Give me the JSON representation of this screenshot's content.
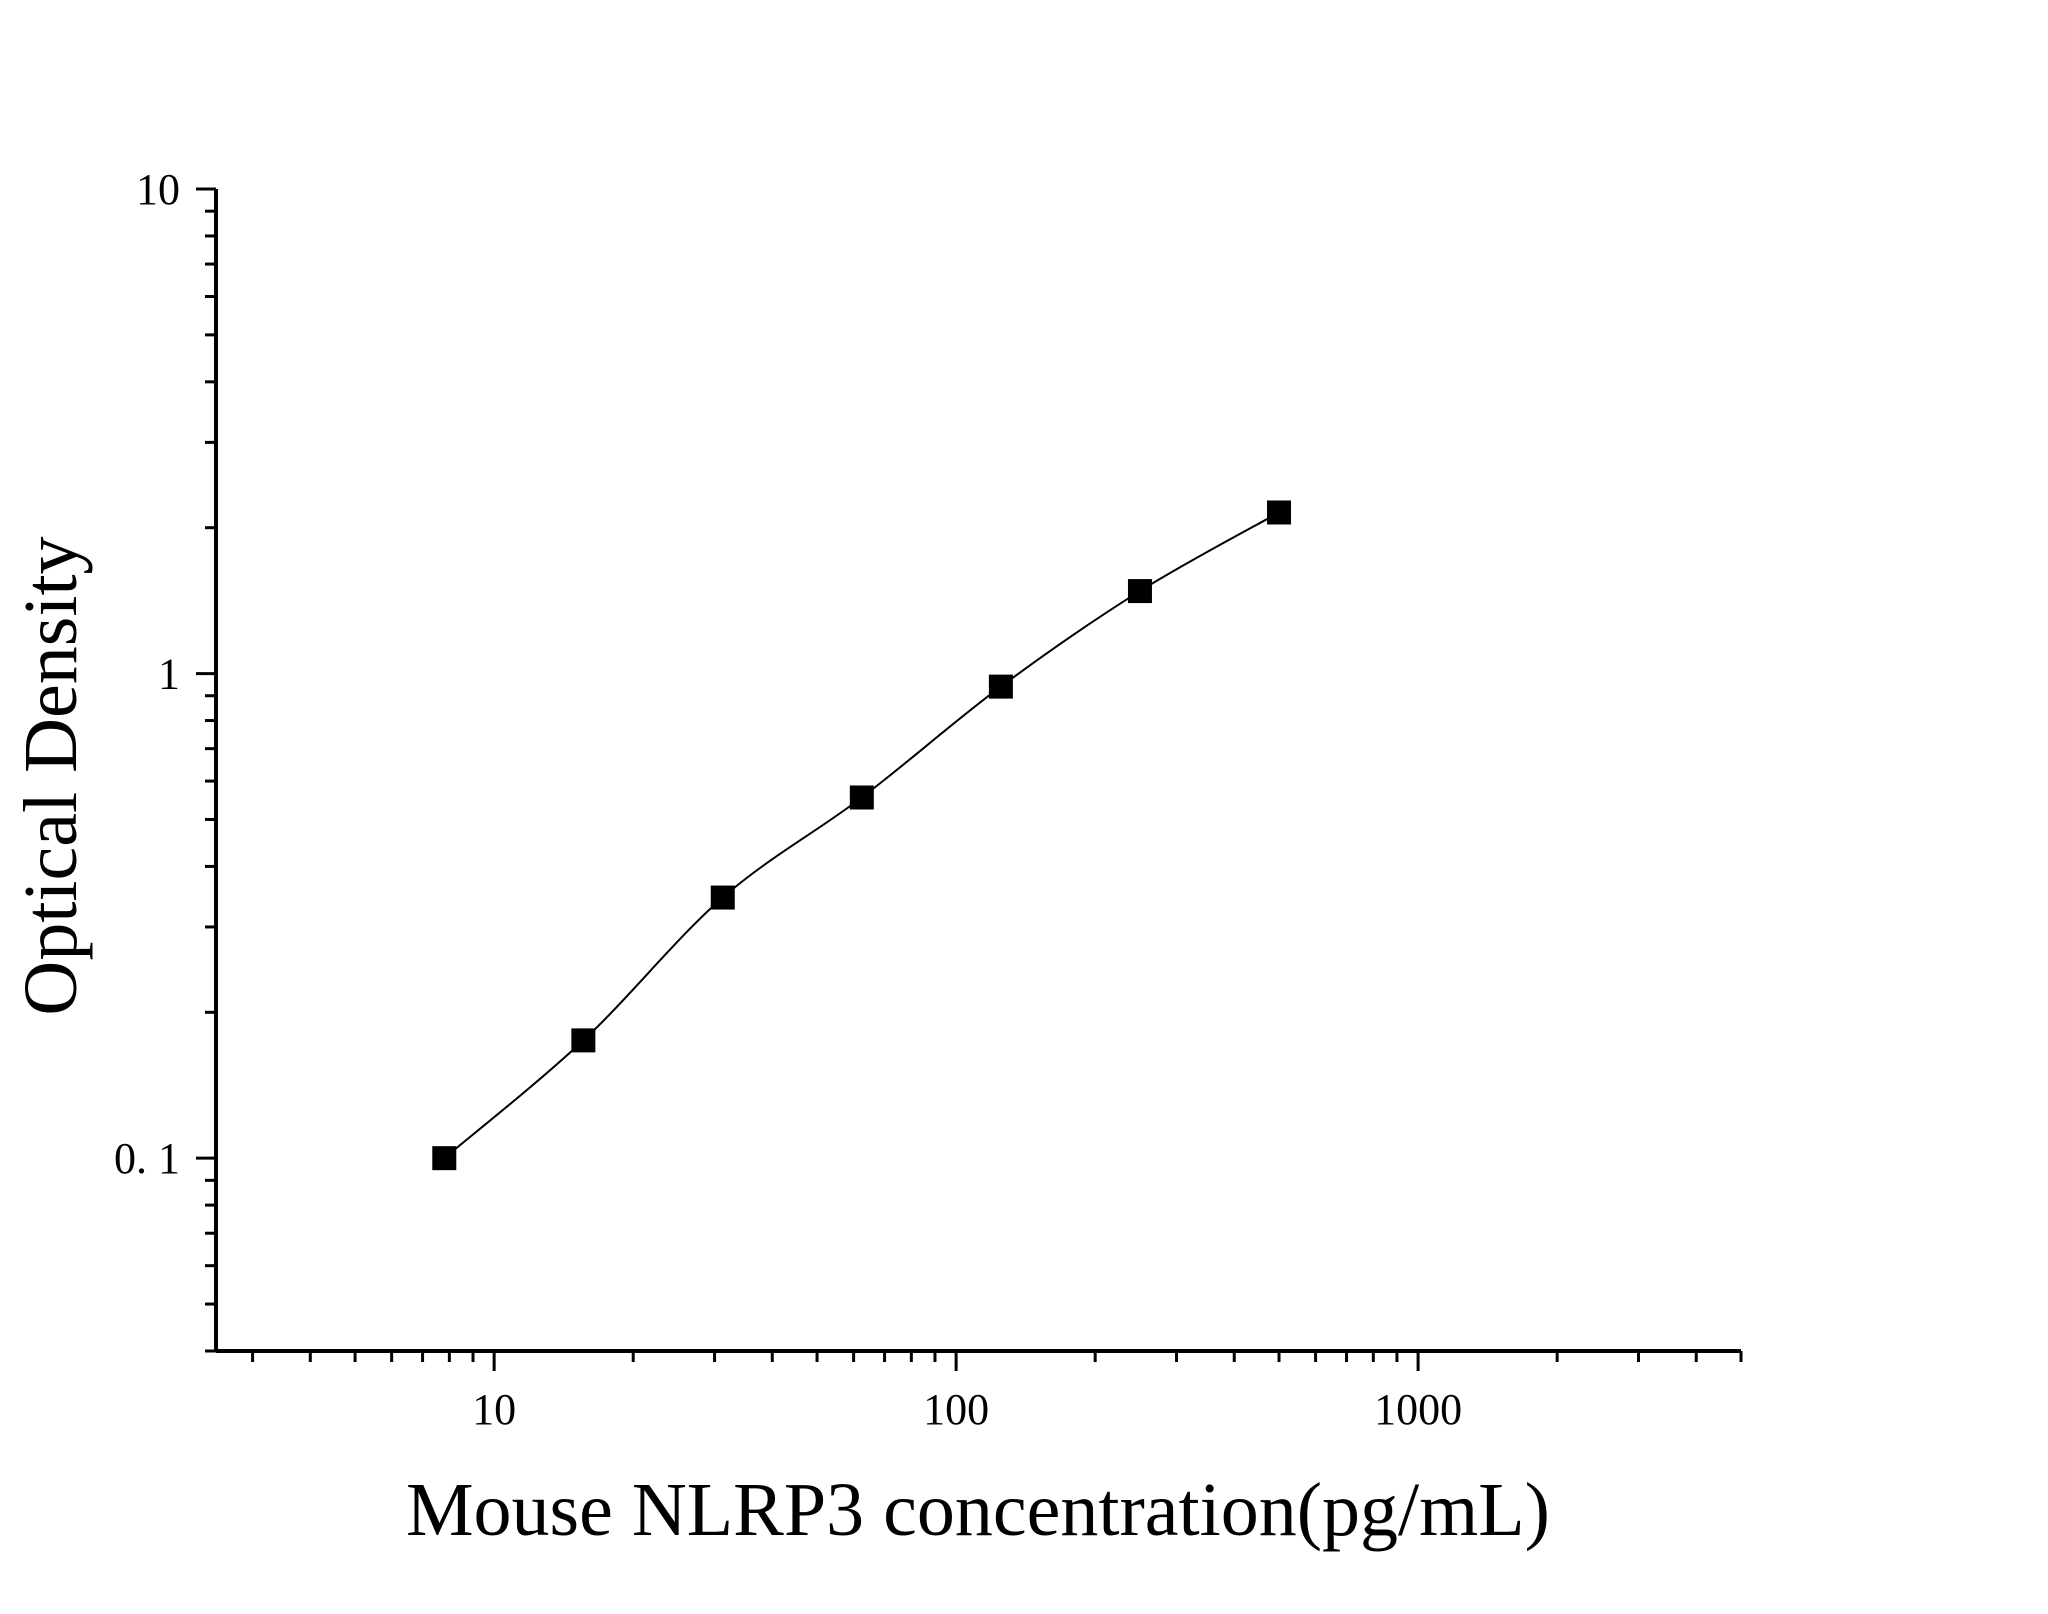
{
  "chart_data": {
    "type": "scatter",
    "title": "",
    "xlabel": "Mouse NLRP3 concentration(pg/mL)",
    "ylabel": "Optical Density",
    "x_scale": "log",
    "y_scale": "log",
    "xlim": [
      2.5,
      5000
    ],
    "ylim": [
      0.04,
      10
    ],
    "x_ticks": [
      {
        "value": 10,
        "label": "10"
      },
      {
        "value": 100,
        "label": "100"
      },
      {
        "value": 1000,
        "label": "1000"
      }
    ],
    "y_ticks": [
      {
        "value": 10,
        "label": "10"
      },
      {
        "value": 1,
        "label": "1"
      },
      {
        "value": 0.1,
        "label": "0. 1"
      }
    ],
    "grid": false,
    "legend": "none",
    "marker": "square",
    "fit_curve": true,
    "series": [
      {
        "x": [
          7.8,
          15.6,
          31.25,
          62.5,
          125,
          250,
          500
        ],
        "y": [
          0.1,
          0.175,
          0.345,
          0.555,
          0.94,
          1.48,
          2.15
        ]
      }
    ]
  },
  "colors": {
    "axis": "#000000",
    "marker": "#000000",
    "curve": "#000000",
    "background": "#ffffff"
  }
}
